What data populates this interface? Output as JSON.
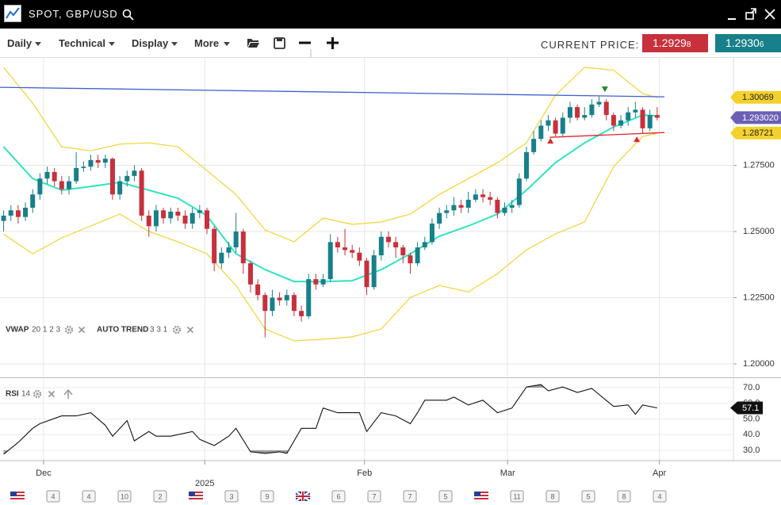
{
  "header": {
    "title": "SPOT, GBP/USD"
  },
  "toolbar": {
    "menus": [
      "Daily",
      "Technical",
      "Display",
      "More"
    ],
    "current_price_label": "CURRENT PRICE:",
    "bid": {
      "main": "1.2929",
      "pip": "8",
      "color": "#c8303c"
    },
    "ask": {
      "main": "1.2930",
      "pip": "6",
      "color": "#17808a"
    }
  },
  "chart_data": {
    "type": "candlestick",
    "xlim": [
      -0.5,
      100.5
    ],
    "xticks": [
      {
        "value": 5.5,
        "label": "Dec"
      },
      {
        "value": 27.7,
        "label": "2025"
      },
      {
        "value": 49.7,
        "label": "Feb"
      },
      {
        "value": 69.4,
        "label": "Mar"
      },
      {
        "value": 90.3,
        "label": "Apr"
      }
    ],
    "ylim": [
      1.1952,
      1.3156
    ],
    "yticks": [
      {
        "value": 1.2,
        "label": "1.20000"
      },
      {
        "value": 1.225,
        "label": "1.22500"
      },
      {
        "value": 1.25,
        "label": "1.25000"
      },
      {
        "value": 1.275,
        "label": "1.27500"
      }
    ],
    "grid": true,
    "up_color": "#17808a",
    "down_color": "#c8303c",
    "open": [
      1.254,
      1.256,
      1.258,
      1.2555,
      1.259,
      1.264,
      1.27,
      1.2725,
      1.269,
      1.266,
      1.269,
      1.274,
      1.2745,
      1.277,
      1.276,
      1.2775,
      1.264,
      1.269,
      1.271,
      1.273,
      1.256,
      1.252,
      1.258,
      1.255,
      1.2575,
      1.256,
      1.253,
      1.257,
      1.258,
      1.251,
      1.238,
      1.242,
      1.244,
      1.25,
      1.238,
      1.23,
      1.226,
      1.22,
      1.225,
      1.224,
      1.226,
      1.22,
      1.218,
      1.232,
      1.23,
      1.232,
      1.246,
      1.244,
      1.243,
      1.242,
      1.239,
      1.229,
      1.241,
      1.248,
      1.246,
      1.244,
      1.241,
      1.238,
      1.244,
      1.246,
      1.253,
      1.257,
      1.258,
      1.26,
      1.259,
      1.262,
      1.264,
      1.263,
      1.262,
      1.257,
      1.259,
      1.26,
      1.27,
      1.28,
      1.285,
      1.29,
      1.292,
      1.287,
      1.293,
      1.297,
      1.293,
      1.294,
      1.298,
      1.299,
      1.294,
      1.29,
      1.292,
      1.295,
      1.296,
      1.289,
      1.294
    ],
    "high": [
      1.258,
      1.26,
      1.26,
      1.261,
      1.266,
      1.272,
      1.2745,
      1.274,
      1.271,
      1.271,
      1.28,
      1.2765,
      1.279,
      1.279,
      1.279,
      1.278,
      1.271,
      1.273,
      1.275,
      1.274,
      1.258,
      1.26,
      1.259,
      1.259,
      1.259,
      1.258,
      1.259,
      1.26,
      1.259,
      1.252,
      1.244,
      1.246,
      1.257,
      1.251,
      1.239,
      1.232,
      1.227,
      1.228,
      1.227,
      1.228,
      1.227,
      1.222,
      1.234,
      1.234,
      1.234,
      1.249,
      1.248,
      1.251,
      1.245,
      1.244,
      1.24,
      1.243,
      1.25,
      1.25,
      1.248,
      1.245,
      1.242,
      1.246,
      1.248,
      1.255,
      1.259,
      1.26,
      1.263,
      1.262,
      1.265,
      1.266,
      1.266,
      1.265,
      1.263,
      1.261,
      1.262,
      1.272,
      1.282,
      1.288,
      1.292,
      1.294,
      1.293,
      1.295,
      1.299,
      1.298,
      1.297,
      1.3,
      1.301,
      1.3,
      1.295,
      1.294,
      1.297,
      1.299,
      1.297,
      1.296,
      1.297
    ],
    "low": [
      1.25,
      1.254,
      1.253,
      1.254,
      1.257,
      1.262,
      1.268,
      1.267,
      1.264,
      1.264,
      1.268,
      1.2725,
      1.273,
      1.274,
      1.274,
      1.262,
      1.262,
      1.267,
      1.269,
      1.254,
      1.248,
      1.25,
      1.253,
      1.253,
      1.254,
      1.251,
      1.251,
      1.255,
      1.249,
      1.235,
      1.236,
      1.24,
      1.242,
      1.234,
      1.227,
      1.224,
      1.21,
      1.218,
      1.222,
      1.222,
      1.218,
      1.216,
      1.217,
      1.228,
      1.229,
      1.231,
      1.242,
      1.241,
      1.24,
      1.237,
      1.226,
      1.228,
      1.239,
      1.244,
      1.24,
      1.238,
      1.234,
      1.237,
      1.243,
      1.245,
      1.251,
      1.255,
      1.256,
      1.257,
      1.257,
      1.261,
      1.261,
      1.26,
      1.255,
      1.256,
      1.257,
      1.259,
      1.269,
      1.279,
      1.284,
      1.288,
      1.286,
      1.286,
      1.291,
      1.292,
      1.292,
      1.293,
      1.297,
      1.292,
      1.288,
      1.289,
      1.29,
      1.293,
      1.287,
      1.288,
      1.292
    ],
    "close": [
      1.256,
      1.258,
      1.2555,
      1.259,
      1.264,
      1.27,
      1.2725,
      1.269,
      1.266,
      1.269,
      1.274,
      1.2745,
      1.277,
      1.276,
      1.2775,
      1.264,
      1.269,
      1.271,
      1.273,
      1.256,
      1.252,
      1.258,
      1.255,
      1.2575,
      1.256,
      1.253,
      1.257,
      1.258,
      1.251,
      1.238,
      1.242,
      1.244,
      1.25,
      1.238,
      1.23,
      1.226,
      1.22,
      1.225,
      1.224,
      1.226,
      1.22,
      1.218,
      1.232,
      1.23,
      1.232,
      1.246,
      1.244,
      1.243,
      1.242,
      1.239,
      1.229,
      1.241,
      1.248,
      1.246,
      1.244,
      1.241,
      1.238,
      1.244,
      1.246,
      1.253,
      1.257,
      1.258,
      1.26,
      1.259,
      1.262,
      1.264,
      1.263,
      1.262,
      1.257,
      1.259,
      1.26,
      1.27,
      1.28,
      1.285,
      1.29,
      1.292,
      1.287,
      1.293,
      1.297,
      1.293,
      1.294,
      1.298,
      1.299,
      1.294,
      1.29,
      1.292,
      1.295,
      1.296,
      1.289,
      1.294,
      1.293
    ],
    "overlays": [
      {
        "color": "#f2d230",
        "x": [
          0,
          4,
          8,
          12,
          16,
          20,
          24,
          28,
          32,
          36,
          40,
          44,
          48,
          52,
          56,
          60,
          64,
          68,
          72,
          76,
          80,
          84,
          88,
          90
        ],
        "values": [
          1.312,
          1.2985,
          1.282,
          1.2805,
          1.283,
          1.2835,
          1.282,
          1.273,
          1.264,
          1.2506,
          1.2461,
          1.2551,
          1.2527,
          1.2536,
          1.2566,
          1.264,
          1.27,
          1.276,
          1.2835,
          1.3015,
          1.312,
          1.311,
          1.3021,
          1.3006
        ]
      },
      {
        "color": "#f2d230",
        "x": [
          0,
          4,
          8,
          12,
          16,
          20,
          24,
          28,
          32,
          36,
          40,
          44,
          48,
          52,
          56,
          60,
          64,
          68,
          72,
          76,
          80,
          84,
          88,
          90
        ],
        "values": [
          1.249,
          1.2416,
          1.2476,
          1.2521,
          1.2566,
          1.25,
          1.2461,
          1.2416,
          1.2296,
          1.2132,
          1.2087,
          1.2093,
          1.2102,
          1.2132,
          1.2251,
          1.2296,
          1.2272,
          1.2341,
          1.2431,
          1.2491,
          1.2536,
          1.2745,
          1.2859,
          1.2871
        ]
      },
      {
        "color": "#2fe3c0",
        "x": [
          0,
          4,
          8,
          12,
          16,
          20,
          24,
          28,
          32,
          36,
          40,
          44,
          48,
          52,
          56,
          60,
          64,
          68,
          72,
          76,
          80,
          84,
          88,
          90
        ],
        "values": [
          1.282,
          1.27,
          1.2656,
          1.267,
          1.2686,
          1.2656,
          1.2626,
          1.256,
          1.2416,
          1.2356,
          1.2311,
          1.2311,
          1.2314,
          1.2356,
          1.2416,
          1.2482,
          1.2521,
          1.2566,
          1.2656,
          1.276,
          1.2835,
          1.2895,
          1.294,
          1.2937
        ]
      }
    ],
    "trendlines": [
      {
        "color": "#3f5fcf",
        "x": [
          -0.5,
          91
        ],
        "values": [
          1.3045,
          1.3009
        ]
      },
      {
        "color": "#e0262f",
        "x": [
          75.2,
          91
        ],
        "values": [
          1.2856,
          1.2874
        ]
      }
    ],
    "signals": [
      {
        "shape": "down",
        "color": "#1e8a2e",
        "x": 82.8,
        "value": 1.3039
      },
      {
        "shape": "up",
        "color": "#e0262f",
        "x": 75.3,
        "value": 1.2841
      },
      {
        "shape": "up",
        "color": "#e0262f",
        "x": 87.2,
        "value": 1.2847
      }
    ],
    "price_labels": [
      {
        "value": 1.30069,
        "color": "#f3d12d",
        "text_color": "#222"
      },
      {
        "value": 1.29302,
        "label": "1.293020",
        "color": "#6b5fb5",
        "text_color": "#ffffff"
      },
      {
        "value": 1.28721,
        "color": "#f3d12d",
        "text_color": "#222"
      }
    ],
    "legend": [
      {
        "name": "VWAP",
        "params": "20 1 2 3"
      },
      {
        "name": "AUTO TREND",
        "params": "3 3 1"
      }
    ],
    "rsi": {
      "name": "RSI",
      "params": "14",
      "color": "#111",
      "ylim": [
        23.9,
        75.6
      ],
      "yticks": [
        {
          "value": 30,
          "label": "30.0"
        },
        {
          "value": 40,
          "label": "40.0"
        },
        {
          "value": 50,
          "label": "50.0"
        },
        {
          "value": 60,
          "label": "60.0"
        },
        {
          "value": 70,
          "label": "70.0"
        }
      ],
      "x": [
        0,
        2,
        4,
        5,
        8,
        10,
        12,
        14,
        15,
        17,
        18,
        20,
        21,
        23,
        26,
        27,
        29,
        31,
        32,
        34,
        36,
        38,
        39,
        41,
        43,
        44,
        46,
        49,
        50,
        52,
        54,
        56,
        57,
        58,
        61,
        62,
        64,
        66,
        68,
        70,
        72,
        74,
        75,
        77,
        79,
        81,
        84,
        86,
        87,
        88,
        90
      ],
      "values": [
        27.5,
        35,
        44,
        47,
        52,
        52,
        54,
        46,
        39,
        49,
        36,
        42,
        39,
        39,
        42,
        37,
        33,
        39,
        44,
        29,
        28,
        29,
        28,
        44,
        44,
        57,
        54,
        54,
        42,
        54,
        52,
        47,
        54,
        62,
        62,
        64,
        59,
        62,
        54,
        57,
        70.5,
        72,
        68,
        70.5,
        67,
        69.5,
        58,
        59,
        53,
        59,
        57.1
      ],
      "last": 57.1
    }
  },
  "calendar": [
    {
      "flag": "us"
    },
    {
      "label": "4"
    },
    {
      "label": "4"
    },
    {
      "label": "10"
    },
    {
      "label": "2"
    },
    {
      "flag": "us"
    },
    {
      "label": "3"
    },
    {
      "label": "9"
    },
    {
      "flag": "uk"
    },
    {
      "label": "6"
    },
    {
      "label": "7"
    },
    {
      "label": "7"
    },
    {
      "label": "5"
    },
    {
      "flag": "us"
    },
    {
      "label": "11"
    },
    {
      "label": "8"
    },
    {
      "label": "5"
    },
    {
      "label": "8"
    },
    {
      "label": "4"
    }
  ]
}
